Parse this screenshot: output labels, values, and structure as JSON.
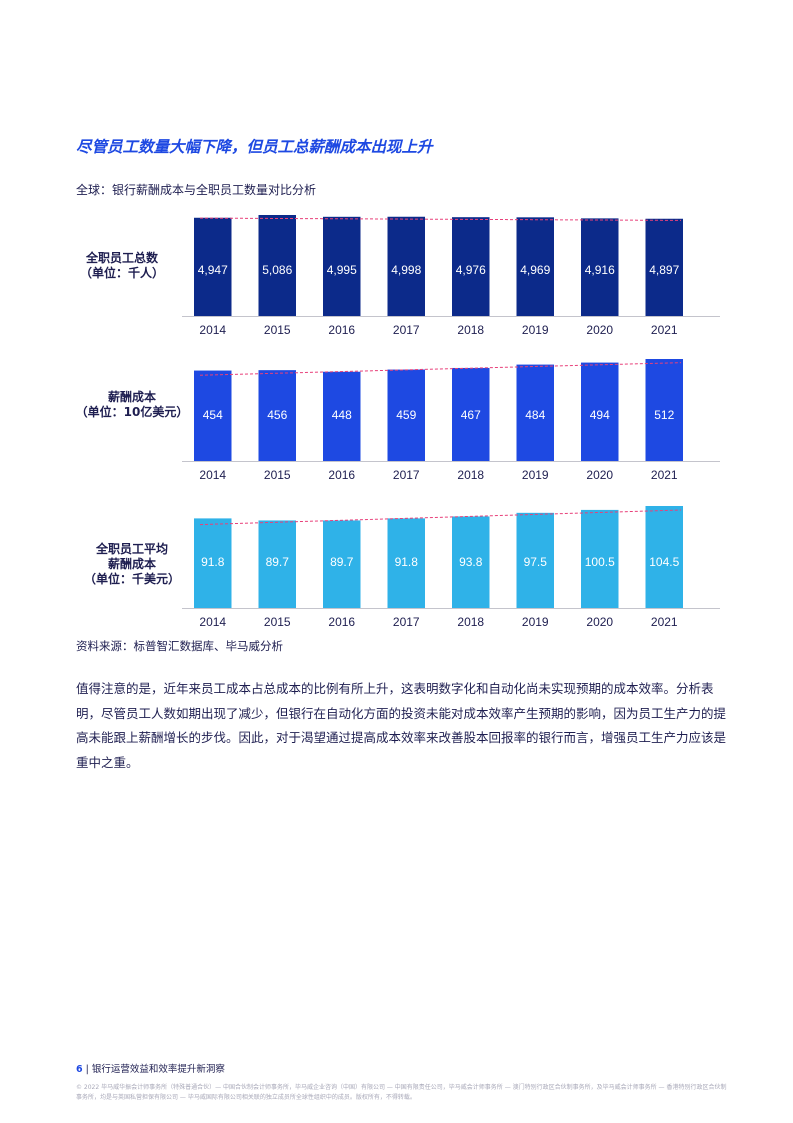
{
  "page": {
    "heading": "尽管员工数量大幅下降，但员工总薪酬成本出现上升",
    "subtitle": "全球：银行薪酬成本与全职员工数量对比分析",
    "source": "资料来源：标普智汇数据库、毕马威分析",
    "body": "值得注意的是，近年来员工成本占总成本的比例有所上升，这表明数字化和自动化尚未实现预期的成本效率。分析表明，尽管员工人数如期出现了减少，但银行在自动化方面的投资未能对成本效率产生预期的影响，因为员工生产力的提高未能跟上薪酬增长的步伐。因此，对于渴望通过提高成本效率来改善股本回报率的银行而言，增强员工生产力应该是重中之重。",
    "footer_page_num": "6",
    "footer_title": "银行运营效益和效率提升新洞察",
    "copyright": "© 2022 毕马威华振会计师事务所（特殊普通合伙）— 中国合伙制会计师事务所，毕马威企业咨询（中国）有限公司 — 中国有限责任公司，毕马威会计师事务所 — 澳门特别行政区合伙制事务所，及毕马威会计师事务所 — 香港特别行政区合伙制事务所，均是与英国私营担保有限公司 — 毕马威国际有限公司相关联的独立成员所全球性组织中的成员。版权所有，不得转载。"
  },
  "chart_data": [
    {
      "type": "bar",
      "label_lines": [
        "全职员工总数",
        "（单位：千人）"
      ],
      "categories": [
        "2014",
        "2015",
        "2016",
        "2017",
        "2018",
        "2019",
        "2020",
        "2021"
      ],
      "values": [
        4947,
        5086,
        4995,
        4998,
        4976,
        4969,
        4916,
        4897
      ],
      "value_labels": [
        "4,947",
        "5,086",
        "4,995",
        "4,998",
        "4,976",
        "4,969",
        "4,916",
        "4,897"
      ],
      "ylim": [
        0,
        5086
      ],
      "color": "#0c2a8a",
      "trendline": true
    },
    {
      "type": "bar",
      "label_lines": [
        "薪酬成本",
        "（单位：10亿美元）"
      ],
      "categories": [
        "2014",
        "2015",
        "2016",
        "2017",
        "2018",
        "2019",
        "2020",
        "2021"
      ],
      "values": [
        454,
        456,
        448,
        459,
        467,
        484,
        494,
        512
      ],
      "value_labels": [
        "454",
        "456",
        "448",
        "459",
        "467",
        "484",
        "494",
        "512"
      ],
      "ylim": [
        0,
        512
      ],
      "color": "#1e49e2",
      "trendline": true
    },
    {
      "type": "bar",
      "label_lines": [
        "全职员工平均",
        "薪酬成本",
        "（单位：千美元）"
      ],
      "categories": [
        "2014",
        "2015",
        "2016",
        "2017",
        "2018",
        "2019",
        "2020",
        "2021"
      ],
      "values": [
        91.8,
        89.7,
        89.7,
        91.8,
        93.8,
        97.5,
        100.5,
        104.5
      ],
      "value_labels": [
        "91.8",
        "89.7",
        "89.7",
        "91.8",
        "93.8",
        "97.5",
        "100.5",
        "104.5"
      ],
      "ylim": [
        0,
        104.5
      ],
      "color": "#2fb2e8",
      "trendline": true
    }
  ]
}
